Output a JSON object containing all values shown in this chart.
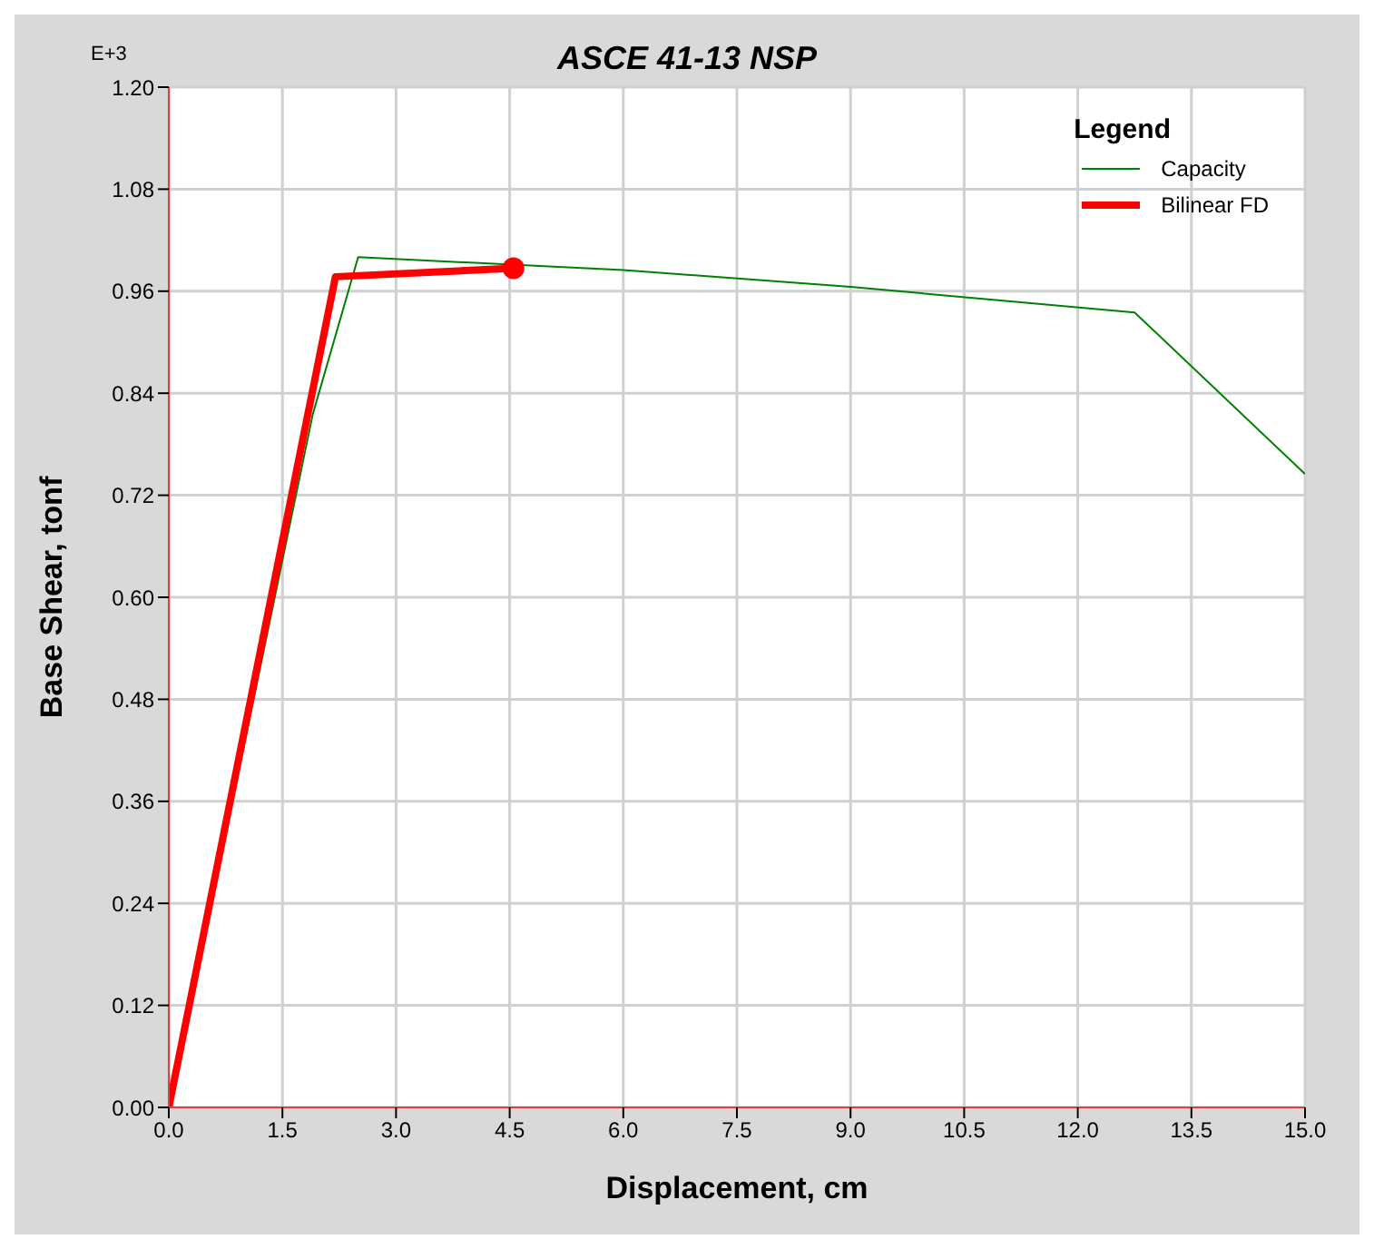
{
  "chart_data": {
    "type": "line",
    "title": "ASCE 41-13 NSP",
    "xlabel": "Displacement, cm",
    "ylabel": "Base Shear, tonf",
    "annotations": [
      "E+3"
    ],
    "legend_title": "Legend",
    "xlim": [
      0,
      15
    ],
    "xticks": [
      {
        "value": 0,
        "label": "0.0"
      },
      {
        "value": 1.5,
        "label": "1.5"
      },
      {
        "value": 3,
        "label": "3.0"
      },
      {
        "value": 4.5,
        "label": "4.5"
      },
      {
        "value": 6,
        "label": "6.0"
      },
      {
        "value": 7.5,
        "label": "7.5"
      },
      {
        "value": 9,
        "label": "9.0"
      },
      {
        "value": 10.5,
        "label": "10.5"
      },
      {
        "value": 12,
        "label": "12.0"
      },
      {
        "value": 13.5,
        "label": "13.5"
      },
      {
        "value": 15,
        "label": "15.0"
      }
    ],
    "ylim": [
      0,
      1.2
    ],
    "yticks": [
      {
        "value": 0,
        "label": "0.00"
      },
      {
        "value": 0.12,
        "label": "0.12"
      },
      {
        "value": 0.24,
        "label": "0.24"
      },
      {
        "value": 0.36,
        "label": "0.36"
      },
      {
        "value": 0.48,
        "label": "0.48"
      },
      {
        "value": 0.6,
        "label": "0.60"
      },
      {
        "value": 0.72,
        "label": "0.72"
      },
      {
        "value": 0.84,
        "label": "0.84"
      },
      {
        "value": 0.96,
        "label": "0.96"
      },
      {
        "value": 1.08,
        "label": "1.08"
      },
      {
        "value": 1.2,
        "label": "1.20"
      }
    ],
    "grid": true,
    "legend": "top right",
    "series": [
      {
        "name": "Capacity",
        "color": "#008000",
        "x": [
          0,
          1.9,
          2.5,
          6,
          9,
          12.75,
          15
        ],
        "values": [
          0,
          0.815,
          1.0,
          0.985,
          0.965,
          0.935,
          0.745
        ]
      },
      {
        "name": "Bilinear FD",
        "color": "#ff0000",
        "x": [
          0,
          2.2,
          4.55
        ],
        "values": [
          0,
          0.977,
          0.987
        ]
      },
      {
        "type": "scatter",
        "color": "#ff0000",
        "x": [
          4.55
        ],
        "values": [
          0.987
        ]
      }
    ]
  }
}
